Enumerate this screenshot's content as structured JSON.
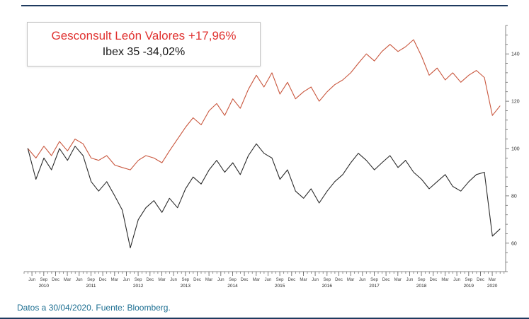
{
  "page": {
    "footer_text": "Datos a 30/04/2020. Fuente: Bloomberg.",
    "colors": {
      "rule_navy": "#1e3a5f",
      "footer_blue": "#1d6f92",
      "legend_red": "#e03230",
      "line_red": "#c9573e",
      "line_black": "#2b2b2b",
      "axis_gray": "#666666"
    }
  },
  "chart_data": {
    "type": "line",
    "title": "",
    "xlabel": "",
    "ylabel": "",
    "grid": false,
    "legend_position": "top-left",
    "legend": [
      {
        "label": "Gesconsult León Valores +17,96%",
        "color": "#e03230"
      },
      {
        "label": "Ibex 35 -34,02%",
        "color": "#1a1a1a"
      }
    ],
    "x_range": [
      2010.25,
      2020.45
    ],
    "ylim": [
      48,
      152
    ],
    "y_ticks": [
      60,
      80,
      100,
      120,
      140
    ],
    "y_minor_step": 4,
    "x_month_labels": [
      "Jun",
      "Sep",
      "Dec",
      "Mar"
    ],
    "x_years": [
      2010,
      2011,
      2012,
      2013,
      2014,
      2015,
      2016,
      2017,
      2018,
      2019,
      2020
    ],
    "x": [
      2010.33,
      2010.5,
      2010.67,
      2010.83,
      2011,
      2011.17,
      2011.33,
      2011.5,
      2011.67,
      2011.83,
      2012,
      2012.17,
      2012.33,
      2012.5,
      2012.67,
      2012.83,
      2013,
      2013.17,
      2013.33,
      2013.5,
      2013.67,
      2013.83,
      2014,
      2014.17,
      2014.33,
      2014.5,
      2014.67,
      2014.83,
      2015,
      2015.17,
      2015.33,
      2015.5,
      2015.67,
      2015.83,
      2016,
      2016.17,
      2016.33,
      2016.5,
      2016.67,
      2016.83,
      2017,
      2017.17,
      2017.33,
      2017.5,
      2017.67,
      2017.83,
      2018,
      2018.17,
      2018.33,
      2018.5,
      2018.67,
      2018.83,
      2019,
      2019.17,
      2019.33,
      2019.5,
      2019.67,
      2019.83,
      2020,
      2020.17,
      2020.33
    ],
    "series": [
      {
        "name": "Gesconsult León Valores",
        "color": "#c9573e",
        "values": [
          100,
          96,
          101,
          97,
          103,
          99,
          104,
          102,
          96,
          95,
          97,
          93,
          92,
          91,
          95,
          97,
          96,
          94,
          99,
          104,
          109,
          113,
          110,
          116,
          119,
          114,
          121,
          117,
          125,
          131,
          126,
          132,
          123,
          128,
          121,
          124,
          126,
          120,
          124,
          127,
          129,
          132,
          136,
          140,
          137,
          141,
          144,
          141,
          143,
          146,
          139,
          131,
          134,
          129,
          132,
          128,
          131,
          133,
          130,
          114,
          118
        ]
      },
      {
        "name": "Ibex 35",
        "color": "#2b2b2b",
        "values": [
          100,
          87,
          96,
          91,
          100,
          95,
          101,
          97,
          86,
          82,
          86,
          80,
          74,
          58,
          70,
          75,
          78,
          73,
          79,
          75,
          83,
          88,
          85,
          91,
          95,
          90,
          94,
          89,
          97,
          102,
          98,
          96,
          87,
          91,
          82,
          79,
          83,
          77,
          82,
          86,
          89,
          94,
          98,
          95,
          91,
          94,
          97,
          92,
          95,
          90,
          87,
          83,
          86,
          89,
          84,
          82,
          86,
          89,
          90,
          63,
          66
        ]
      }
    ]
  }
}
